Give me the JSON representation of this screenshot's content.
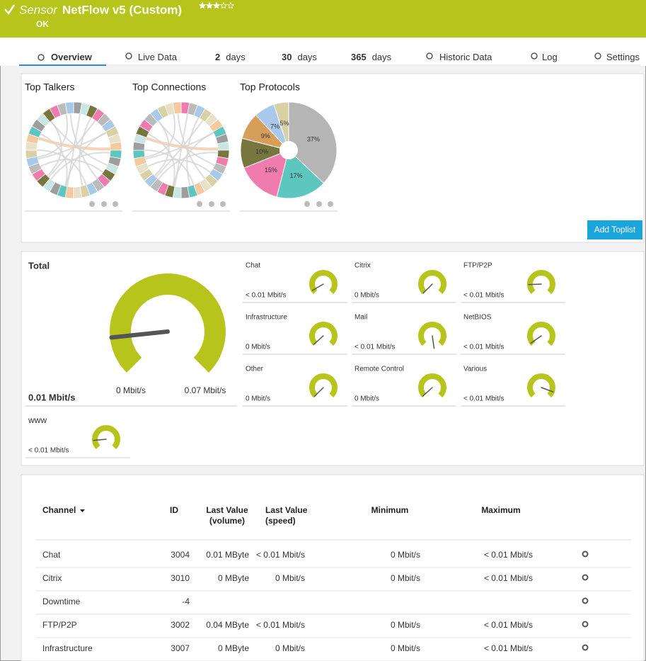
{
  "header": {
    "kind": "Sensor",
    "name": "NetFlow v5 (Custom)",
    "status": "OK"
  },
  "tabs": [
    {
      "label": "Overview"
    },
    {
      "label": "Live Data"
    },
    {
      "count": 2,
      "label": "days"
    },
    {
      "count": 30,
      "label": "days"
    },
    {
      "count": 365,
      "label": "days"
    },
    {
      "label": "Historic Data"
    },
    {
      "label": "Log"
    },
    {
      "label": "Settings"
    }
  ],
  "toplists": {
    "titles": [
      "Top Talkers",
      "Top Connections",
      "Top Protocols"
    ],
    "protocols": {
      "values": [
        37,
        17,
        15,
        10,
        9,
        7,
        5
      ],
      "value_labels": [
        "37%",
        "17%",
        "15%",
        "10%",
        "9%",
        "7%",
        "5%"
      ],
      "colors": [
        "#b5b5b5",
        "#5cc6bf",
        "#f07bae",
        "#77763f",
        "#d69e58",
        "#a9c9ea",
        "#d9d1a6"
      ]
    },
    "button": "Add Toplist"
  },
  "gauges": {
    "total": {
      "name": "Total",
      "value": "0.01 Mbit/s",
      "min": "0 Mbit/s",
      "max": "0.07 Mbit/s"
    },
    "channels": [
      {
        "name": "Chat",
        "value": "< 0.01 Mbit/s"
      },
      {
        "name": "Citrix",
        "value": "0 Mbit/s"
      },
      {
        "name": "FTP/P2P",
        "value": "< 0.01 Mbit/s"
      },
      {
        "name": "Infrastructure",
        "value": "0 Mbit/s"
      },
      {
        "name": "Mail",
        "value": "< 0.01 Mbit/s"
      },
      {
        "name": "NetBIOS",
        "value": "< 0.01 Mbit/s"
      },
      {
        "name": "Other",
        "value": "0 Mbit/s"
      },
      {
        "name": "Remote Control",
        "value": "0 Mbit/s"
      },
      {
        "name": "Various",
        "value": "< 0.01 Mbit/s"
      },
      {
        "name": "www",
        "value": "< 0.01 Mbit/s"
      }
    ]
  },
  "table": {
    "headers": [
      {
        "lines": [
          "Channel"
        ]
      },
      {
        "lines": [
          "ID"
        ]
      },
      {
        "lines": [
          "Last Value",
          "(volume)"
        ]
      },
      {
        "lines": [
          "Last Value",
          "(speed)"
        ]
      },
      {
        "lines": [
          "Minimum"
        ]
      },
      {
        "lines": [
          "Maximum"
        ]
      }
    ],
    "rows": [
      {
        "channel": "Chat",
        "id": 3004,
        "volume": "0.01 MByte",
        "speed": "< 0.01 Mbit/s",
        "minimum": "0 Mbit/s",
        "maximum": "< 0.01 Mbit/s"
      },
      {
        "channel": "Citrix",
        "id": 3010,
        "volume": "0 MByte",
        "speed": "0 Mbit/s",
        "minimum": "0 Mbit/s",
        "maximum": "< 0.01 Mbit/s"
      },
      {
        "channel": "Downtime",
        "id": -4
      },
      {
        "channel": "FTP/P2P",
        "id": 3002,
        "volume": "0.04 MByte",
        "speed": "< 0.01 Mbit/s",
        "minimum": "0 Mbit/s",
        "maximum": "< 0.01 Mbit/s"
      },
      {
        "channel": "Infrastructure",
        "id": 3007,
        "volume": "0 MByte",
        "speed": "0 Mbit/s",
        "minimum": "0 Mbit/s",
        "maximum": "< 0.01 Mbit/s"
      }
    ]
  }
}
